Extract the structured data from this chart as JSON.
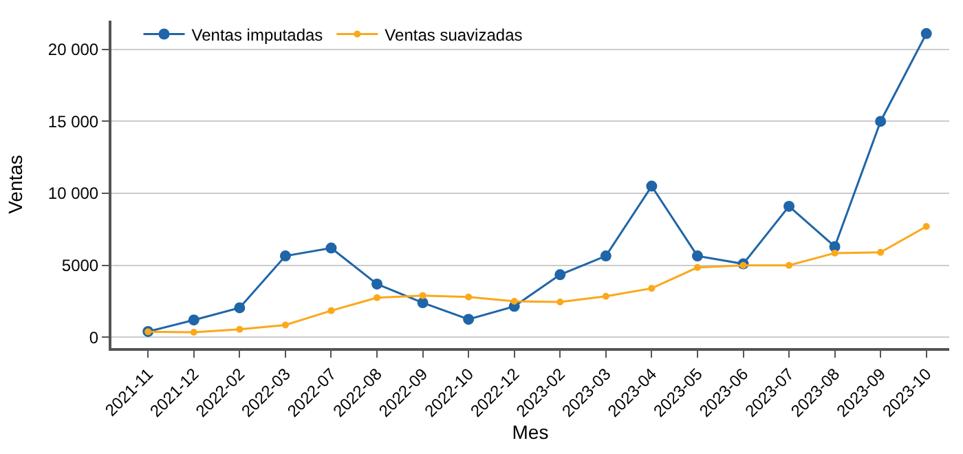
{
  "chart_data": {
    "type": "line",
    "xlabel": "Mes",
    "ylabel": "Ventas",
    "categories": [
      "2021-11",
      "2021-12",
      "2022-02",
      "2022-03",
      "2022-07",
      "2022-08",
      "2022-09",
      "2022-10",
      "2022-12",
      "2023-02",
      "2023-03",
      "2023-04",
      "2023-05",
      "2023-06",
      "2023-07",
      "2023-08",
      "2023-09",
      "2023-10"
    ],
    "series": [
      {
        "name": "Ventas imputadas",
        "color": "#1f65a8",
        "values": [
          400,
          1200,
          2050,
          5650,
          6200,
          3700,
          2400,
          1250,
          2150,
          4350,
          5650,
          10500,
          5650,
          5100,
          9100,
          6300,
          15000,
          21100
        ]
      },
      {
        "name": "Ventas suavizadas",
        "color": "#fba81b",
        "values": [
          380,
          350,
          550,
          850,
          1850,
          2750,
          2900,
          2800,
          2500,
          2450,
          2850,
          3400,
          4850,
          5000,
          5000,
          5850,
          5900,
          7700
        ]
      }
    ],
    "ylim": [
      -750,
      22000
    ],
    "yticks": [
      0,
      {
        "value": 5000,
        "label": "5000"
      },
      {
        "value": 10000,
        "label": "10 000"
      },
      {
        "value": 15000,
        "label": "15 000"
      },
      {
        "value": 20000,
        "label": "20 000"
      }
    ],
    "grid": "y",
    "legend": "top left",
    "marker": "circle",
    "line_style": "solid"
  }
}
